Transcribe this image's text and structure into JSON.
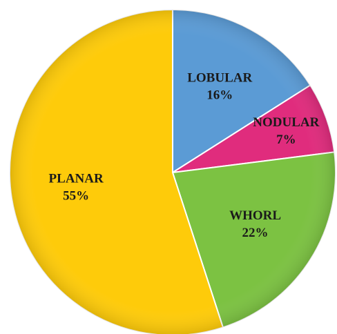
{
  "chart_data": {
    "type": "pie",
    "categories": [
      "LOBULAR",
      "NODULAR",
      "WHORL",
      "PLANAR"
    ],
    "values": [
      16,
      7,
      22,
      55
    ],
    "value_labels": [
      "16%",
      "7%",
      "22%",
      "55%"
    ],
    "colors": [
      "#5b9bd5",
      "#e02c7d",
      "#7cc242",
      "#fecb0a"
    ]
  }
}
